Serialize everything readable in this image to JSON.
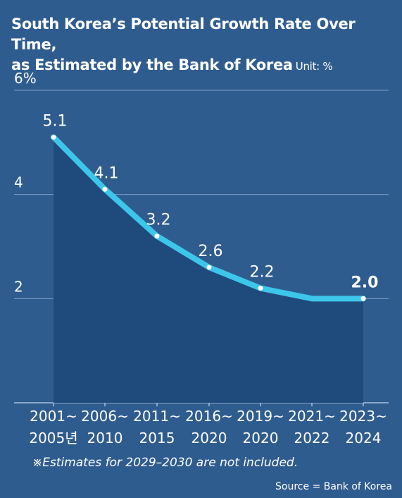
{
  "title_line1": "South Korea’s Potential Growth Rate Over Time,",
  "title_line2": "as Estimated by the Bank of Korea",
  "unit": "Unit: %",
  "note": "※Estimates for 2029–2030 are not included.",
  "source": "Source = Bank of Korea",
  "colors": {
    "background": "#2f5c8f",
    "area": "#1f4a7c",
    "line": "#3cc6ea",
    "grid": "#7e9ec4"
  },
  "chart_data": {
    "type": "line",
    "categories": [
      [
        "2001~",
        "2005년"
      ],
      [
        "2006~",
        "2010"
      ],
      [
        "2011~",
        "2015"
      ],
      [
        "2016~",
        "2020"
      ],
      [
        "2019~",
        "2020"
      ],
      [
        "2021~",
        "2022"
      ],
      [
        "2023~",
        "2024"
      ]
    ],
    "values": [
      5.1,
      4.1,
      3.2,
      2.6,
      2.2,
      2.0,
      2.0
    ],
    "data_labels": [
      "5.1",
      "4.1",
      "3.2",
      "2.6",
      "2.2",
      "",
      "2.0"
    ],
    "y_ticks": [
      "2",
      "4",
      "6%"
    ],
    "y_tick_values": [
      2,
      4,
      6
    ],
    "ylim": [
      0,
      6
    ],
    "grid": true,
    "area_fill": true
  }
}
